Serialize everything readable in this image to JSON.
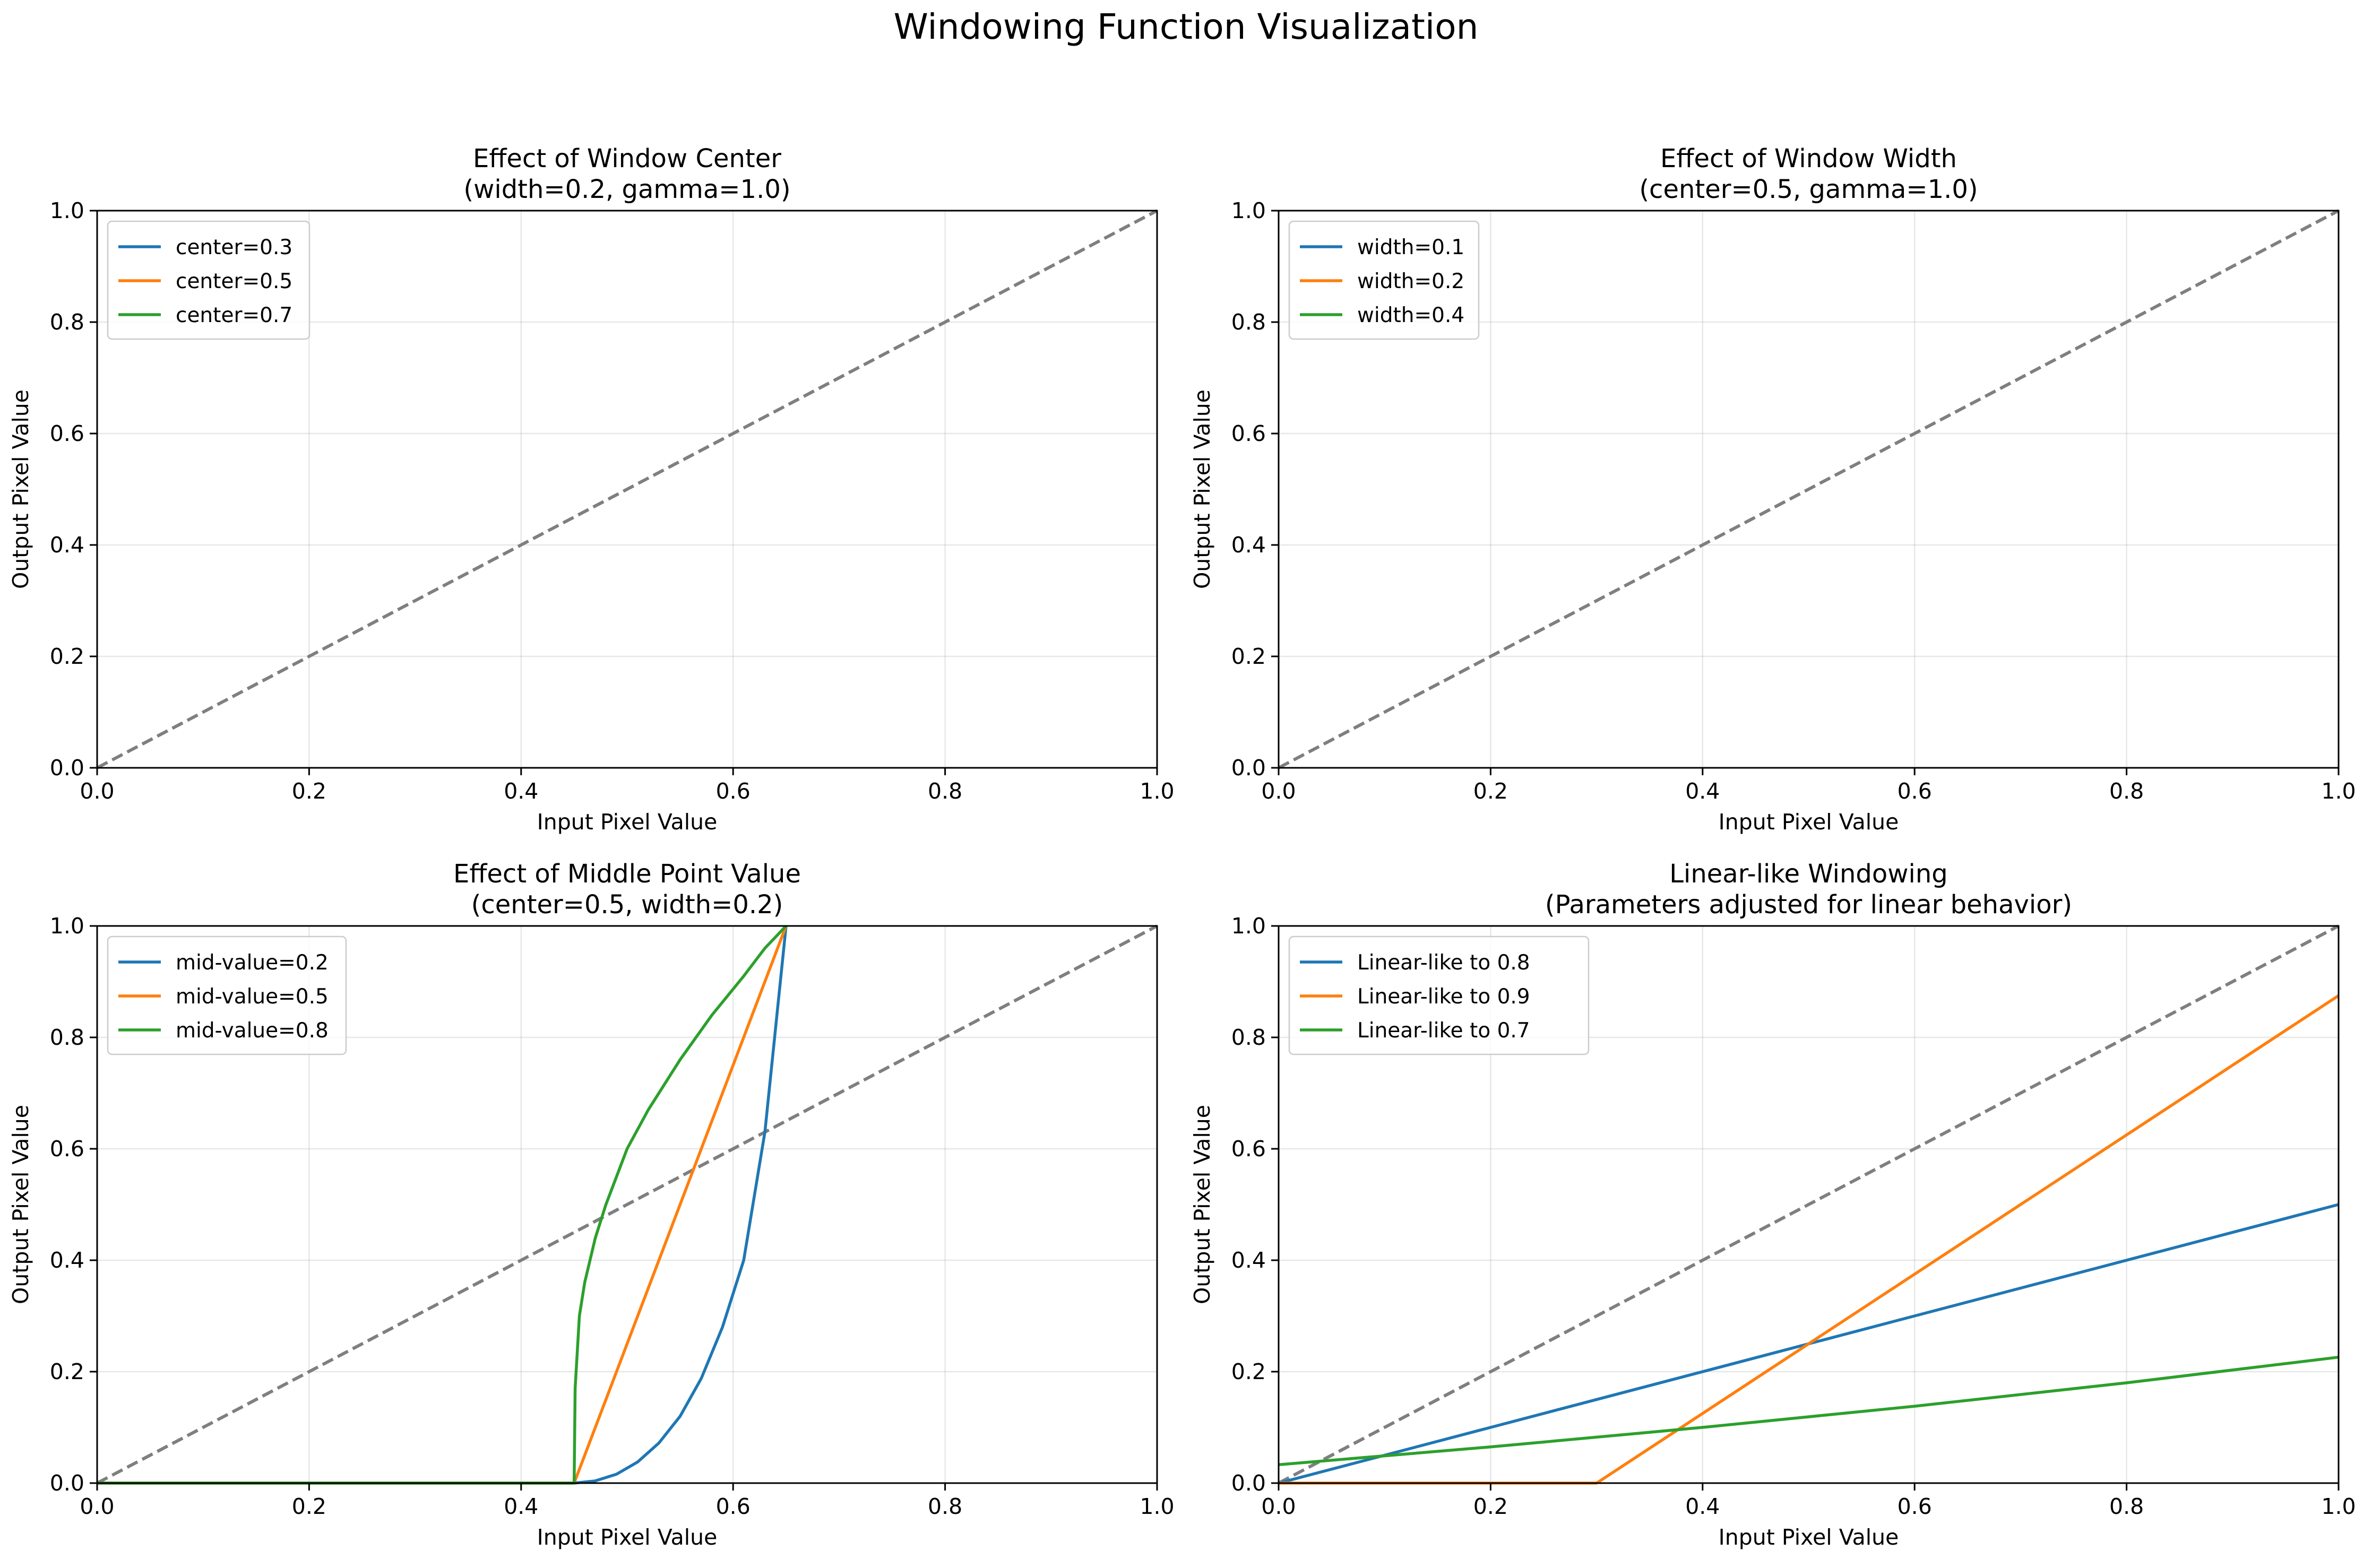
{
  "suptitle": "Windowing Function Visualization",
  "chart_data": [
    {
      "type": "line",
      "title": "Effect of Window Center",
      "subtitle": "(width=0.2, gamma=1.0)",
      "xlabel": "Input Pixel Value",
      "ylabel": "Output Pixel Value",
      "xlim": [
        0,
        1
      ],
      "ylim": [
        0,
        1
      ],
      "xticks": [
        "0.0",
        "0.2",
        "0.4",
        "0.6",
        "0.8",
        "1.0"
      ],
      "yticks": [
        "0.0",
        "0.2",
        "0.4",
        "0.6",
        "0.8",
        "1.0"
      ],
      "grid": true,
      "legend_position": "upper-left",
      "series": [
        {
          "name": "center=0.3",
          "color": "#1f77b4",
          "x": [],
          "y": []
        },
        {
          "name": "center=0.5",
          "color": "#ff7f0e",
          "x": [],
          "y": []
        },
        {
          "name": "center=0.7",
          "color": "#2ca02c",
          "x": [],
          "y": []
        }
      ],
      "reference_line": {
        "style": "dashed",
        "color": "#7f7f7f",
        "x": [
          0,
          1
        ],
        "y": [
          0,
          1
        ]
      }
    },
    {
      "type": "line",
      "title": "Effect of Window Width",
      "subtitle": "(center=0.5, gamma=1.0)",
      "xlabel": "Input Pixel Value",
      "ylabel": "Output Pixel Value",
      "xlim": [
        0,
        1
      ],
      "ylim": [
        0,
        1
      ],
      "xticks": [
        "0.0",
        "0.2",
        "0.4",
        "0.6",
        "0.8",
        "1.0"
      ],
      "yticks": [
        "0.0",
        "0.2",
        "0.4",
        "0.6",
        "0.8",
        "1.0"
      ],
      "grid": true,
      "legend_position": "upper-left",
      "series": [
        {
          "name": "width=0.1",
          "color": "#1f77b4",
          "x": [],
          "y": []
        },
        {
          "name": "width=0.2",
          "color": "#ff7f0e",
          "x": [],
          "y": []
        },
        {
          "name": "width=0.4",
          "color": "#2ca02c",
          "x": [],
          "y": []
        }
      ],
      "reference_line": {
        "style": "dashed",
        "color": "#7f7f7f",
        "x": [
          0,
          1
        ],
        "y": [
          0,
          1
        ]
      }
    },
    {
      "type": "line",
      "title": "Effect of Middle Point Value",
      "subtitle": "(center=0.5, width=0.2)",
      "xlabel": "Input Pixel Value",
      "ylabel": "Output Pixel Value",
      "xlim": [
        0,
        1
      ],
      "ylim": [
        0,
        1
      ],
      "xticks": [
        "0.0",
        "0.2",
        "0.4",
        "0.6",
        "0.8",
        "1.0"
      ],
      "yticks": [
        "0.0",
        "0.2",
        "0.4",
        "0.6",
        "0.8",
        "1.0"
      ],
      "grid": true,
      "legend_position": "upper-left",
      "series": [
        {
          "name": "mid-value=0.2",
          "color": "#1f77b4",
          "x": [
            0,
            0.45,
            0.47,
            0.49,
            0.51,
            0.53,
            0.55,
            0.57,
            0.59,
            0.61,
            0.63,
            0.65
          ],
          "y": [
            0,
            0,
            0.004,
            0.016,
            0.038,
            0.072,
            0.12,
            0.188,
            0.28,
            0.4,
            0.63,
            1.0
          ]
        },
        {
          "name": "mid-value=0.5",
          "color": "#ff7f0e",
          "x": [
            0,
            0.45,
            0.65
          ],
          "y": [
            0,
            0,
            1.0
          ]
        },
        {
          "name": "mid-value=0.8",
          "color": "#2ca02c",
          "x": [
            0,
            0.45,
            0.451,
            0.455,
            0.46,
            0.47,
            0.48,
            0.5,
            0.52,
            0.55,
            0.58,
            0.61,
            0.63,
            0.65
          ],
          "y": [
            0,
            0,
            0.17,
            0.3,
            0.36,
            0.44,
            0.5,
            0.6,
            0.67,
            0.76,
            0.84,
            0.91,
            0.96,
            1.0
          ]
        }
      ],
      "reference_line": {
        "style": "dashed",
        "color": "#7f7f7f",
        "x": [
          0,
          1
        ],
        "y": [
          0,
          1
        ]
      }
    },
    {
      "type": "line",
      "title": "Linear-like Windowing",
      "subtitle": "(Parameters adjusted for linear behavior)",
      "xlabel": "Input Pixel Value",
      "ylabel": "Output Pixel Value",
      "xlim": [
        0,
        1
      ],
      "ylim": [
        0,
        1
      ],
      "xticks": [
        "0.0",
        "0.2",
        "0.4",
        "0.6",
        "0.8",
        "1.0"
      ],
      "yticks": [
        "0.0",
        "0.2",
        "0.4",
        "0.6",
        "0.8",
        "1.0"
      ],
      "grid": true,
      "legend_position": "upper-left",
      "series": [
        {
          "name": "Linear-like to 0.8",
          "color": "#1f77b4",
          "x": [
            0,
            1
          ],
          "y": [
            0,
            0.5
          ]
        },
        {
          "name": "Linear-like to 0.9",
          "color": "#ff7f0e",
          "x": [
            0,
            0.3,
            1
          ],
          "y": [
            0,
            0,
            0.875
          ]
        },
        {
          "name": "Linear-like to 0.7",
          "color": "#2ca02c",
          "x": [
            0,
            0.2,
            0.4,
            0.6,
            0.8,
            1.0
          ],
          "y": [
            0.033,
            0.065,
            0.1,
            0.138,
            0.18,
            0.226
          ]
        }
      ],
      "reference_line": {
        "style": "dashed",
        "color": "#7f7f7f",
        "x": [
          0,
          1
        ],
        "y": [
          0,
          1
        ]
      }
    }
  ]
}
